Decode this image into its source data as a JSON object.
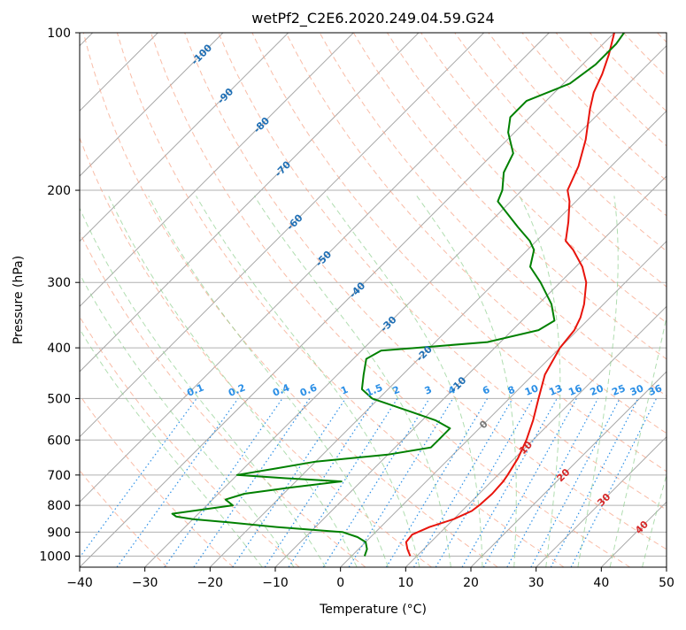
{
  "chart_data": {
    "type": "line",
    "title": "wetPf2_C2E6.2020.249.04.59.G24",
    "xlabel": "Temperature (°C)",
    "ylabel": "Pressure (hPa)",
    "xlim": [
      -40,
      50
    ],
    "ylim": [
      1050,
      100
    ],
    "y_scale": "log",
    "x_ticks": [
      -40,
      -30,
      -20,
      -10,
      0,
      10,
      20,
      30,
      40,
      50
    ],
    "x_tick_labels": [
      "−40",
      "−30",
      "−20",
      "−10",
      "0",
      "10",
      "20",
      "30",
      "40",
      "50"
    ],
    "y_ticks": [
      1000,
      900,
      800,
      700,
      600,
      500,
      400,
      300,
      200,
      100
    ],
    "y_tick_labels": [
      "1000",
      "900",
      "800",
      "700",
      "600",
      "500",
      "400",
      "300",
      "200",
      "100"
    ],
    "grid": true,
    "background_lines": {
      "skewed_isotherms": true,
      "dry_adiabats": true,
      "moist_adiabats": true,
      "mixing_ratio_lines": true,
      "isotherm_labels": [
        "-100",
        "-90",
        "-80",
        "-70",
        "-60",
        "-50",
        "-40",
        "-30",
        "-20",
        "-10",
        "0",
        "10",
        "20",
        "30",
        "40"
      ],
      "mixing_ratio_labels": [
        "0.1",
        "0.2",
        "0.4",
        "0.6",
        "1",
        "1.5",
        "2",
        "3",
        "4",
        "6",
        "8",
        "10",
        "13",
        "16",
        "20",
        "25",
        "30",
        "36"
      ]
    },
    "series": [
      {
        "color": "#e8140c",
        "points": [
          [
            1000,
            9.0
          ],
          [
            970,
            7.5
          ],
          [
            940,
            6.2
          ],
          [
            910,
            6.0
          ],
          [
            880,
            7.5
          ],
          [
            850,
            10.0
          ],
          [
            820,
            11.5
          ],
          [
            800,
            11.8
          ],
          [
            760,
            12.0
          ],
          [
            720,
            11.8
          ],
          [
            700,
            11.5
          ],
          [
            650,
            10.5
          ],
          [
            600,
            9.0
          ],
          [
            550,
            7.0
          ],
          [
            500,
            4.5
          ],
          [
            450,
            1.8
          ],
          [
            400,
            0
          ],
          [
            370,
            -0.5
          ],
          [
            350,
            -1.5
          ],
          [
            330,
            -3.0
          ],
          [
            300,
            -6.0
          ],
          [
            280,
            -9.0
          ],
          [
            260,
            -13.0
          ],
          [
            250,
            -15.5
          ],
          [
            230,
            -18.0
          ],
          [
            210,
            -21.0
          ],
          [
            200,
            -23.0
          ],
          [
            180,
            -25.0
          ],
          [
            160,
            -28.0
          ],
          [
            140,
            -32.0
          ],
          [
            130,
            -34.0
          ],
          [
            120,
            -35.5
          ],
          [
            110,
            -37.5
          ],
          [
            100,
            -40.0
          ]
        ]
      },
      {
        "color": "#008000",
        "points": [
          [
            1000,
            2.0
          ],
          [
            970,
            1.3
          ],
          [
            940,
            0
          ],
          [
            920,
            -2.0
          ],
          [
            900,
            -5.0
          ],
          [
            880,
            -16.0
          ],
          [
            860,
            -25.0
          ],
          [
            850,
            -30.0
          ],
          [
            840,
            -33.0
          ],
          [
            830,
            -34.0
          ],
          [
            800,
            -26.0
          ],
          [
            780,
            -28.0
          ],
          [
            760,
            -26.0
          ],
          [
            740,
            -20.0
          ],
          [
            720,
            -13.0
          ],
          [
            710,
            -22.0
          ],
          [
            700,
            -30.0
          ],
          [
            680,
            -25.0
          ],
          [
            660,
            -20.0
          ],
          [
            650,
            -15.0
          ],
          [
            640,
            -10.0
          ],
          [
            620,
            -4.5
          ],
          [
            600,
            -4.5
          ],
          [
            570,
            -4.5
          ],
          [
            550,
            -8.0
          ],
          [
            530,
            -13.0
          ],
          [
            500,
            -21.0
          ],
          [
            480,
            -24.0
          ],
          [
            450,
            -26.0
          ],
          [
            420,
            -28.0
          ],
          [
            405,
            -27.0
          ],
          [
            400,
            -22.0
          ],
          [
            390,
            -12.0
          ],
          [
            370,
            -6.0
          ],
          [
            355,
            -5.0
          ],
          [
            330,
            -8.0
          ],
          [
            300,
            -13.0
          ],
          [
            280,
            -17.0
          ],
          [
            260,
            -19.0
          ],
          [
            250,
            -21.0
          ],
          [
            235,
            -25.0
          ],
          [
            210,
            -32.0
          ],
          [
            200,
            -33.0
          ],
          [
            185,
            -35.5
          ],
          [
            170,
            -37.0
          ],
          [
            155,
            -41.0
          ],
          [
            145,
            -43.0
          ],
          [
            135,
            -43.0
          ],
          [
            125,
            -39.0
          ],
          [
            115,
            -38.0
          ],
          [
            105,
            -38.0
          ],
          [
            100,
            -38.5
          ]
        ]
      }
    ]
  }
}
